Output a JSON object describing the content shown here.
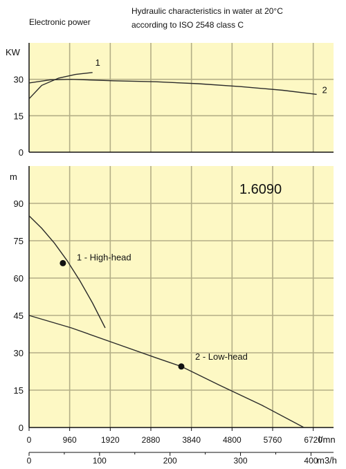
{
  "header": {
    "left": "Electronic power",
    "right_line1": "Hydraulic characteristics in water at 20°C",
    "right_line2": "according to ISO 2548 class C"
  },
  "colors": {
    "panel_bg": "#fdf8c4",
    "grid": "#b3ae86",
    "axis": "#111111",
    "curve": "#2a2a2a"
  },
  "chart_data": [
    {
      "type": "line",
      "title": "",
      "xlabel": "l/mn",
      "ylabel": "KW",
      "xlim": [
        0,
        7200
      ],
      "ylim": [
        0,
        45
      ],
      "yticks": [
        0,
        15,
        30
      ],
      "grid": true,
      "series": [
        {
          "name": "1",
          "x": [
            0,
            300,
            700,
            1100,
            1500
          ],
          "y": [
            22.0,
            27.5,
            30.5,
            32.0,
            32.8
          ]
        },
        {
          "name": "2",
          "x": [
            0,
            500,
            1000,
            2000,
            3000,
            4000,
            5000,
            6000,
            6800
          ],
          "y": [
            28.5,
            29.8,
            30.0,
            29.4,
            29.0,
            28.2,
            27.0,
            25.5,
            23.8
          ]
        }
      ]
    },
    {
      "type": "line",
      "title": "1.6090",
      "xlabel": "l/mn",
      "ylabel": "m",
      "xlim": [
        0,
        7200
      ],
      "ylim": [
        0,
        105
      ],
      "yticks": [
        0,
        15,
        30,
        45,
        60,
        75,
        90
      ],
      "xticks_lmn": [
        "0",
        "960",
        "1920",
        "2880",
        "3840",
        "4800",
        "5760",
        "6720"
      ],
      "x2label": "m3/h",
      "x2ticks": [
        "0",
        "100",
        "200",
        "300",
        "400"
      ],
      "grid": true,
      "series": [
        {
          "name": "1 - High-head",
          "x": [
            0,
            300,
            600,
            900,
            1200,
            1500,
            1800
          ],
          "y": [
            85,
            80,
            74,
            67,
            59,
            50,
            40
          ]
        },
        {
          "name": "2 - Low-head",
          "x": [
            0,
            1000,
            2000,
            3000,
            3600,
            4500,
            5500,
            6500
          ],
          "y": [
            45,
            40,
            34,
            28,
            24.5,
            17,
            9,
            0
          ]
        }
      ],
      "points": [
        {
          "series": "1 - High-head",
          "x": 800,
          "y": 66
        },
        {
          "series": "2 - Low-head",
          "x": 3600,
          "y": 24.5
        }
      ]
    }
  ]
}
